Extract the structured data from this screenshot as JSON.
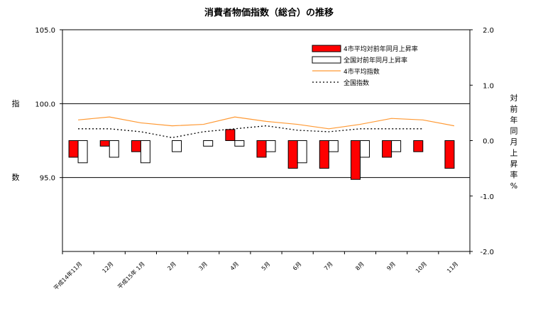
{
  "chart_data": {
    "type": "bar+line",
    "title": "消費者物価指数（総合）の推移",
    "categories": [
      "平成14年11月",
      "12月",
      "平成15年 1月",
      "2月",
      "3月",
      "4月",
      "5月",
      "6月",
      "7月",
      "8月",
      "9月",
      "10月",
      "11月"
    ],
    "left_axis": {
      "label_chars": [
        "指",
        "数"
      ],
      "ylim": [
        90.0,
        105.0
      ],
      "ticks": [
        "105.0",
        "100.0",
        "95.0"
      ],
      "tick_values": [
        105,
        100,
        95
      ]
    },
    "right_axis": {
      "label_chars": [
        "対",
        "前",
        "年",
        "同",
        "月",
        "上",
        "昇",
        "率",
        "%"
      ],
      "ylim": [
        -2.0,
        2.0
      ],
      "ticks": [
        "2.0",
        "1.0",
        "0.0",
        "-1.0",
        "-2.0"
      ],
      "tick_values": [
        2,
        1,
        0,
        -1,
        -2
      ]
    },
    "series": [
      {
        "name": "4市平均対前年同月上昇率",
        "kind": "bar",
        "axis": "right",
        "color": "#ff0000",
        "values": [
          -0.3,
          -0.1,
          -0.2,
          null,
          null,
          0.2,
          -0.3,
          -0.5,
          -0.5,
          -0.7,
          -0.3,
          -0.2,
          -0.5
        ]
      },
      {
        "name": "全国対前年同月上昇率",
        "kind": "bar",
        "axis": "right",
        "color": "#ffffff",
        "values": [
          -0.4,
          -0.3,
          -0.4,
          -0.2,
          -0.1,
          -0.1,
          -0.2,
          -0.4,
          -0.2,
          -0.3,
          -0.2,
          null,
          null
        ]
      },
      {
        "name": "4市平均指数",
        "kind": "line",
        "axis": "left",
        "color": "#ff9933",
        "values": [
          98.9,
          99.1,
          98.7,
          98.5,
          98.6,
          99.1,
          98.8,
          98.6,
          98.3,
          98.6,
          99.0,
          98.9,
          98.5
        ]
      },
      {
        "name": "全国指数",
        "kind": "line",
        "axis": "left",
        "style": "dotted",
        "color": "#000000",
        "values": [
          98.3,
          98.3,
          98.1,
          97.7,
          98.1,
          98.3,
          98.5,
          98.2,
          98.1,
          98.3,
          98.3,
          98.3,
          null
        ]
      }
    ],
    "gridlines": [
      100.0,
      95.0
    ],
    "legend_position": "top-right"
  }
}
